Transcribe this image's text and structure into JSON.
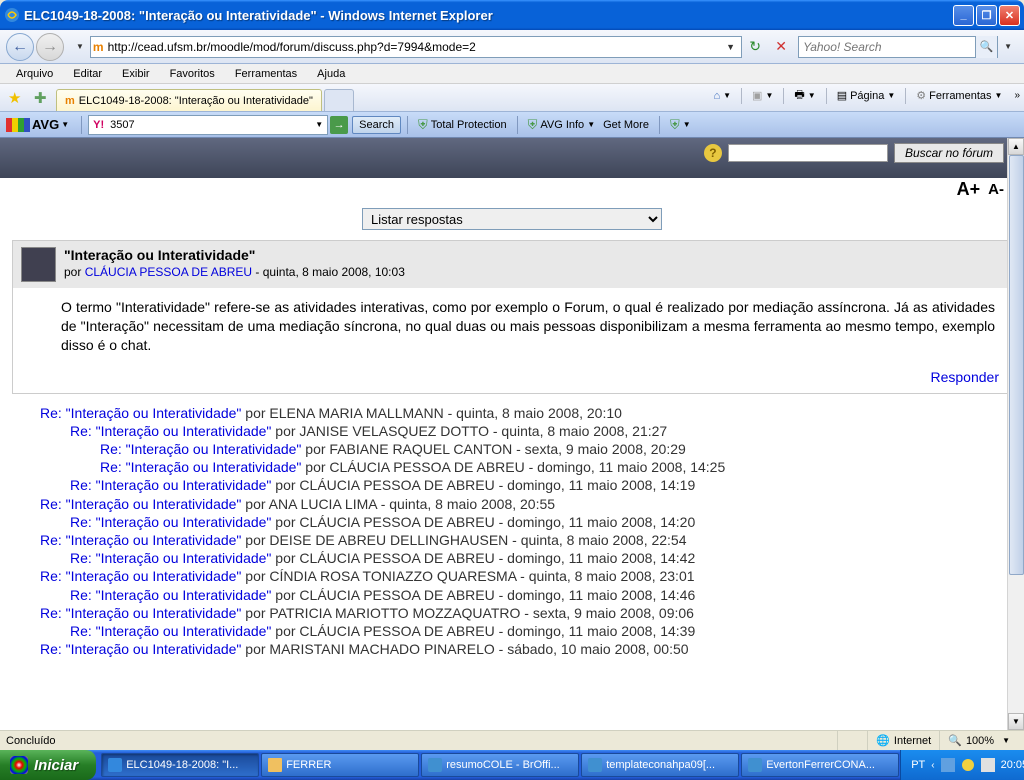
{
  "window": {
    "title": "ELC1049-18-2008: \"Interação ou Interatividade\" - Windows Internet Explorer"
  },
  "addressBar": {
    "url": "http://cead.ufsm.br/moodle/mod/forum/discuss.php?d=7994&mode=2"
  },
  "searchBox": {
    "placeholder": "Yahoo! Search"
  },
  "menuBar": {
    "items": [
      "Arquivo",
      "Editar",
      "Exibir",
      "Favoritos",
      "Ferramentas",
      "Ajuda"
    ]
  },
  "tab": {
    "title": "ELC1049-18-2008: \"Interação ou Interatividade\""
  },
  "commandBar": {
    "page": "Página",
    "tools": "Ferramentas"
  },
  "avg": {
    "logo": "AVG",
    "searchValue": "3507",
    "searchBtn": "Search",
    "totalProtection": "Total Protection",
    "avgInfo": "AVG Info",
    "getMore": "Get More"
  },
  "forum": {
    "searchBtn": "Buscar no fórum",
    "zoomIn": "A+",
    "zoomOut": "A-",
    "displayMode": "Listar respostas"
  },
  "post": {
    "title": "\"Interação ou Interatividade\"",
    "byPrefix": "por ",
    "author": "CLÁUCIA PESSOA DE ABREU",
    "date": " - quinta, 8 maio 2008, 10:03",
    "body": "O termo \"Interatividade\" refere-se as atividades interativas, como por exemplo o Forum, o qual é realizado por mediação assíncrona. Já as atividades de \"Interação\" necessitam de uma mediação síncrona, no qual duas ou mais pessoas disponibilizam a mesma ferramenta ao mesmo tempo, exemplo disso é o chat.",
    "replyLink": "Responder"
  },
  "replies": [
    {
      "indent": 0,
      "title": "Re: \"Interação ou Interatividade\"",
      "meta": " por ELENA MARIA MALLMANN - quinta, 8 maio 2008, 20:10"
    },
    {
      "indent": 1,
      "title": "Re: \"Interação ou Interatividade\"",
      "meta": " por JANISE VELASQUEZ DOTTO - quinta, 8 maio 2008, 21:27"
    },
    {
      "indent": 2,
      "title": "Re: \"Interação ou Interatividade\"",
      "meta": " por FABIANE RAQUEL CANTON - sexta, 9 maio 2008, 20:29"
    },
    {
      "indent": 2,
      "title": "Re: \"Interação ou Interatividade\"",
      "meta": " por CLÁUCIA PESSOA DE ABREU - domingo, 11 maio 2008, 14:25"
    },
    {
      "indent": 1,
      "title": "Re: \"Interação ou Interatividade\"",
      "meta": " por CLÁUCIA PESSOA DE ABREU - domingo, 11 maio 2008, 14:19"
    },
    {
      "indent": 0,
      "title": "Re: \"Interação ou Interatividade\"",
      "meta": " por ANA LUCIA LIMA - quinta, 8 maio 2008, 20:55"
    },
    {
      "indent": 1,
      "title": "Re: \"Interação ou Interatividade\"",
      "meta": " por CLÁUCIA PESSOA DE ABREU - domingo, 11 maio 2008, 14:20"
    },
    {
      "indent": 0,
      "title": "Re: \"Interação ou Interatividade\"",
      "meta": " por DEISE DE ABREU DELLINGHAUSEN - quinta, 8 maio 2008, 22:54"
    },
    {
      "indent": 1,
      "title": "Re: \"Interação ou Interatividade\"",
      "meta": " por CLÁUCIA PESSOA DE ABREU - domingo, 11 maio 2008, 14:42"
    },
    {
      "indent": 0,
      "title": "Re: \"Interação ou Interatividade\"",
      "meta": " por CÍNDIA ROSA TONIAZZO QUARESMA - quinta, 8 maio 2008, 23:01"
    },
    {
      "indent": 1,
      "title": "Re: \"Interação ou Interatividade\"",
      "meta": " por CLÁUCIA PESSOA DE ABREU - domingo, 11 maio 2008, 14:46"
    },
    {
      "indent": 0,
      "title": "Re: \"Interação ou Interatividade\"",
      "meta": " por PATRICIA MARIOTTO MOZZAQUATRO - sexta, 9 maio 2008, 09:06"
    },
    {
      "indent": 1,
      "title": "Re: \"Interação ou Interatividade\"",
      "meta": " por CLÁUCIA PESSOA DE ABREU - domingo, 11 maio 2008, 14:39"
    },
    {
      "indent": 0,
      "title": "Re: \"Interação ou Interatividade\"",
      "meta": " por MARISTANI MACHADO PINARELO - sábado, 10 maio 2008, 00:50"
    }
  ],
  "statusBar": {
    "done": "Concluído",
    "zone": "Internet",
    "zoom": "100%"
  },
  "taskbar": {
    "start": "Iniciar",
    "items": [
      {
        "label": "ELC1049-18-2008: \"I..."
      },
      {
        "label": "FERRER"
      },
      {
        "label": "resumoCOLE - BrOffi..."
      },
      {
        "label": "templateconahpa09[..."
      },
      {
        "label": "EvertonFerrerCONA..."
      }
    ],
    "lang": "PT",
    "clock": "20:05"
  }
}
